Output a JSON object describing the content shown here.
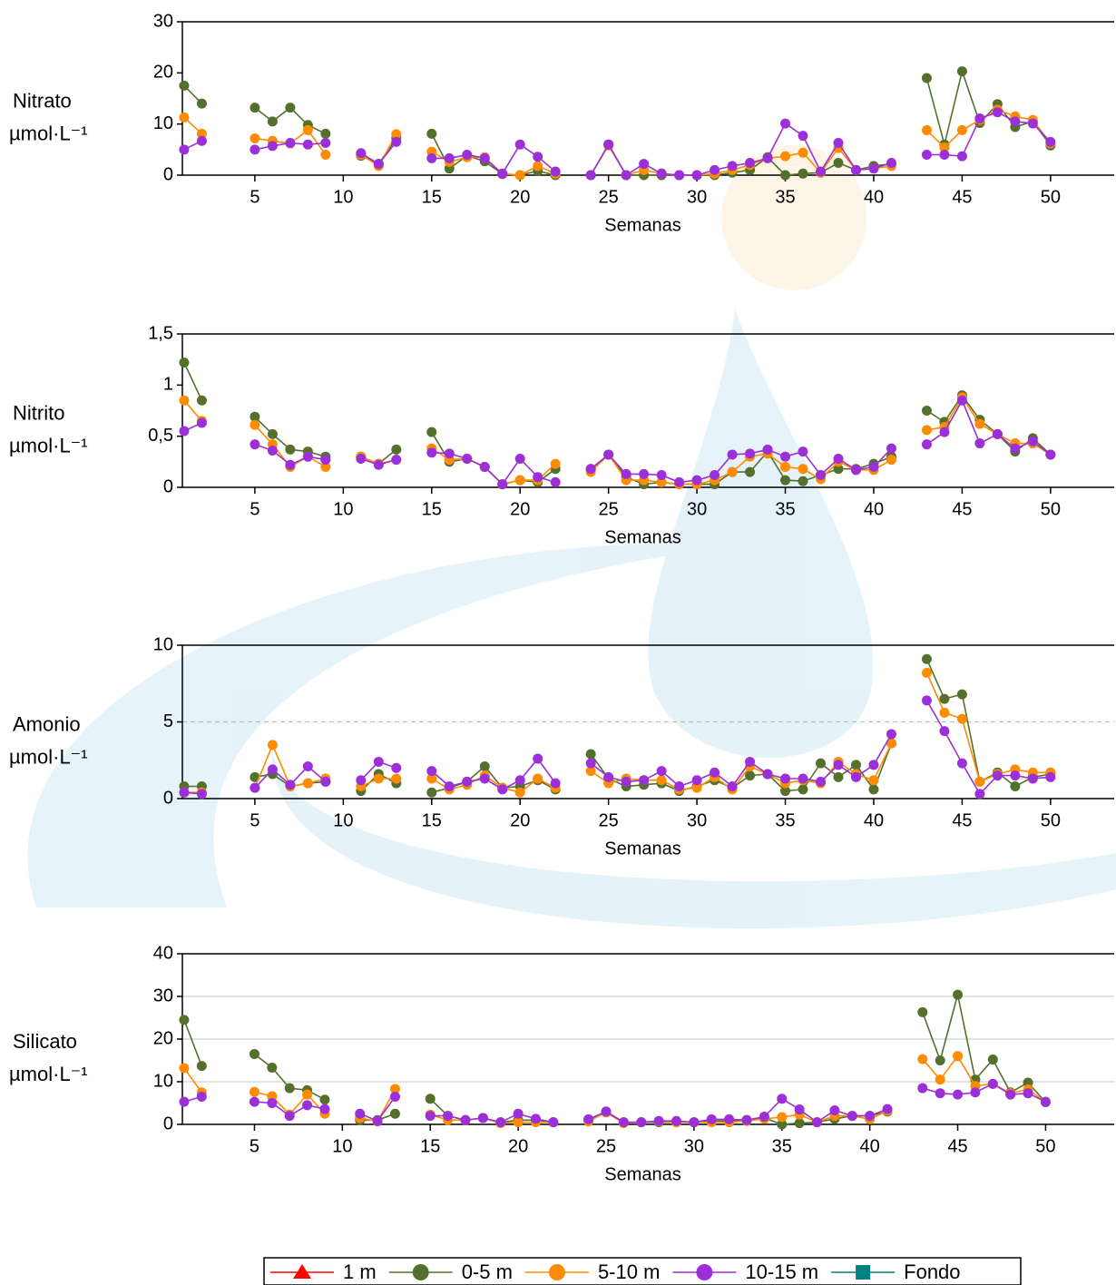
{
  "chart_data": [
    {
      "type": "line",
      "ylabel": "Nitrato",
      "yunit": "µmol·L⁻¹",
      "xlabel": "Semanas",
      "x": [
        1,
        2,
        3,
        4,
        5,
        6,
        7,
        8,
        9,
        10,
        11,
        12,
        13,
        14,
        15,
        16,
        17,
        18,
        19,
        20,
        21,
        22,
        23,
        24,
        25,
        26,
        27,
        28,
        29,
        30,
        31,
        32,
        33,
        34,
        35,
        36,
        37,
        38,
        39,
        40,
        41,
        42,
        43,
        44,
        45,
        46,
        47,
        48,
        49,
        50
      ],
      "xlim": [
        0.9,
        53.6
      ],
      "xticks": [
        5,
        10,
        15,
        20,
        25,
        30,
        35,
        40,
        45,
        50
      ],
      "ylim": [
        0,
        30
      ],
      "yticks": [
        0,
        10,
        20,
        30
      ],
      "grid": false,
      "series": [
        {
          "color": "#54702d",
          "values": [
            17.5,
            14,
            null,
            null,
            13.2,
            10.5,
            13.2,
            9.8,
            8.1,
            null,
            3.8,
            2.2,
            7.2,
            null,
            8.1,
            1.3,
            3.8,
            2.7,
            0.2,
            0,
            0.8,
            0,
            null,
            0,
            6,
            0,
            0,
            0,
            0,
            0,
            0,
            0.5,
            1,
            3.5,
            0,
            0.3,
            0.5,
            2.4,
            1,
            1.8,
            2.2,
            null,
            19,
            6,
            20.3,
            10.2,
            13.9,
            9.4,
            10.5,
            5.8
          ]
        },
        {
          "color": "#ff8c00",
          "values": [
            11.3,
            8.1,
            null,
            null,
            7.2,
            6.7,
            6.2,
            8.8,
            4,
            null,
            4,
            1.8,
            8,
            null,
            4.6,
            2.6,
            3.5,
            3.5,
            0.3,
            0,
            1.8,
            0.3,
            null,
            0,
            5.8,
            0,
            1,
            0.3,
            0,
            0,
            0.3,
            1,
            2,
            3.3,
            3.7,
            4.4,
            0.5,
            5.3,
            1,
            1.3,
            1.8,
            null,
            8.8,
            5.4,
            8.8,
            10.8,
            12.8,
            11.5,
            10.8,
            6.2
          ]
        },
        {
          "color": "#9b30d9",
          "values": [
            5,
            6.7,
            null,
            null,
            5,
            5.7,
            6.3,
            6,
            6.3,
            null,
            4.3,
            2.2,
            6.5,
            null,
            3.3,
            3.3,
            4,
            3.3,
            0.3,
            6,
            3.6,
            0.7,
            null,
            0,
            6,
            0,
            2.2,
            0.3,
            0,
            0,
            1,
            1.8,
            2.4,
            3.3,
            10.1,
            7.7,
            0.7,
            6.3,
            1,
            1.3,
            2.4,
            null,
            4,
            4,
            3.7,
            11.1,
            12.3,
            10.5,
            10.1,
            6.5
          ]
        }
      ]
    },
    {
      "type": "line",
      "ylabel": "Nitrito",
      "yunit": "µmol·L⁻¹",
      "xlabel": "Semanas",
      "x": [
        1,
        2,
        3,
        4,
        5,
        6,
        7,
        8,
        9,
        10,
        11,
        12,
        13,
        14,
        15,
        16,
        17,
        18,
        19,
        20,
        21,
        22,
        23,
        24,
        25,
        26,
        27,
        28,
        29,
        30,
        31,
        32,
        33,
        34,
        35,
        36,
        37,
        38,
        39,
        40,
        41,
        42,
        43,
        44,
        45,
        46,
        47,
        48,
        49,
        50
      ],
      "xlim": [
        0.9,
        53.6
      ],
      "xticks": [
        5,
        10,
        15,
        20,
        25,
        30,
        35,
        40,
        45,
        50
      ],
      "ylim": [
        0,
        1.5
      ],
      "yticks": [
        0,
        {
          "value": 0.5,
          "label": "0,5"
        },
        1,
        {
          "value": 1.5,
          "label": "1,5"
        }
      ],
      "grid": false,
      "series": [
        {
          "color": "#54702d",
          "values": [
            1.22,
            0.85,
            null,
            null,
            0.69,
            0.52,
            0.37,
            0.35,
            0.3,
            null,
            0.3,
            0.23,
            0.37,
            null,
            0.54,
            0.25,
            0.28,
            0.2,
            0.03,
            0.07,
            0.05,
            0.18,
            null,
            0.18,
            0.32,
            0.1,
            0.03,
            0.05,
            0.03,
            0.03,
            0.03,
            0.15,
            0.15,
            0.35,
            0.07,
            0.06,
            0.12,
            0.18,
            0.18,
            0.23,
            0.3,
            null,
            0.75,
            0.64,
            0.9,
            0.66,
            0.52,
            0.35,
            0.48,
            0.32
          ]
        },
        {
          "color": "#ff8c00",
          "values": [
            0.85,
            0.65,
            null,
            null,
            0.61,
            0.42,
            0.2,
            0.3,
            0.2,
            null,
            0.3,
            0.23,
            0.27,
            null,
            0.38,
            0.27,
            0.28,
            0.2,
            0.03,
            0.07,
            0.07,
            0.23,
            null,
            0.15,
            0.32,
            0.07,
            0.07,
            0.05,
            0.03,
            0.03,
            0.07,
            0.15,
            0.3,
            0.33,
            0.2,
            0.18,
            0.08,
            0.25,
            0.17,
            0.17,
            0.27,
            null,
            0.56,
            0.59,
            0.88,
            0.62,
            0.52,
            0.43,
            0.43,
            0.32
          ]
        },
        {
          "color": "#9b30d9",
          "values": [
            0.55,
            0.63,
            null,
            null,
            0.42,
            0.36,
            0.22,
            0.3,
            0.27,
            null,
            0.28,
            0.22,
            0.27,
            null,
            0.34,
            0.33,
            0.28,
            0.2,
            0.03,
            0.28,
            0.1,
            0.05,
            null,
            0.18,
            0.32,
            0.13,
            0.13,
            0.12,
            0.05,
            0.07,
            0.12,
            0.32,
            0.33,
            0.37,
            0.3,
            0.35,
            0.12,
            0.28,
            0.17,
            0.2,
            0.38,
            null,
            0.42,
            0.54,
            0.85,
            0.43,
            0.52,
            0.38,
            0.45,
            0.32
          ]
        }
      ]
    },
    {
      "type": "line",
      "ylabel": "Amonio",
      "yunit": "µmol·L⁻¹",
      "xlabel": "Semanas",
      "x": [
        1,
        2,
        3,
        4,
        5,
        6,
        7,
        8,
        9,
        10,
        11,
        12,
        13,
        14,
        15,
        16,
        17,
        18,
        19,
        20,
        21,
        22,
        23,
        24,
        25,
        26,
        27,
        28,
        29,
        30,
        31,
        32,
        33,
        34,
        35,
        36,
        37,
        38,
        39,
        40,
        41,
        42,
        43,
        44,
        45,
        46,
        47,
        48,
        49,
        50
      ],
      "xlim": [
        0.9,
        53.6
      ],
      "xticks": [
        5,
        10,
        15,
        20,
        25,
        30,
        35,
        40,
        45,
        50
      ],
      "ylim": [
        0,
        10
      ],
      "yticks": [
        0,
        5,
        10
      ],
      "grid": "dashed",
      "series": [
        {
          "color": "#54702d",
          "values": [
            0.8,
            0.8,
            null,
            null,
            1.4,
            1.6,
            0.8,
            1,
            1.1,
            null,
            0.5,
            1.6,
            1,
            null,
            0.4,
            0.7,
            1.1,
            2.1,
            0.7,
            0.8,
            1.2,
            0.6,
            null,
            2.9,
            1.3,
            0.8,
            0.9,
            1,
            0.5,
            0.8,
            1.2,
            0.7,
            1.5,
            1.6,
            0.5,
            0.6,
            2.3,
            1.4,
            2.2,
            0.6,
            3.6,
            null,
            9.1,
            6.5,
            6.8,
            1.1,
            1.7,
            0.8,
            1.4,
            1.6
          ]
        },
        {
          "color": "#ff8c00",
          "values": [
            0.4,
            0.4,
            null,
            null,
            0.7,
            3.5,
            0.8,
            1,
            1.3,
            null,
            0.8,
            1.3,
            1.3,
            null,
            1.3,
            0.6,
            0.9,
            1.5,
            0.7,
            0.4,
            1.3,
            0.7,
            null,
            1.8,
            1,
            1.3,
            1.2,
            1.2,
            0.6,
            0.7,
            1.4,
            0.6,
            2.1,
            1.6,
            1,
            1.2,
            1,
            2.4,
            1.6,
            1.2,
            3.6,
            null,
            8.2,
            5.6,
            5.2,
            1.1,
            1.6,
            1.9,
            1.7,
            1.7
          ]
        },
        {
          "color": "#9b30d9",
          "values": [
            0.4,
            0.3,
            null,
            null,
            0.7,
            1.9,
            0.9,
            2.1,
            1.1,
            null,
            1.2,
            2.4,
            2,
            null,
            1.8,
            0.8,
            1.1,
            1.3,
            0.6,
            1.2,
            2.6,
            1,
            null,
            2.3,
            1.4,
            1.1,
            1.2,
            1.8,
            0.8,
            1.2,
            1.7,
            0.8,
            2.4,
            1.6,
            1.3,
            1.3,
            1.1,
            2.2,
            1.4,
            2.2,
            4.2,
            null,
            6.4,
            4.4,
            2.3,
            0.3,
            1.5,
            1.5,
            1.3,
            1.4
          ]
        }
      ]
    },
    {
      "type": "line",
      "ylabel": "Silicato",
      "yunit": "µmol·L⁻¹",
      "xlabel": "Semanas",
      "x": [
        1,
        2,
        3,
        4,
        5,
        6,
        7,
        8,
        9,
        10,
        11,
        12,
        13,
        14,
        15,
        16,
        17,
        18,
        19,
        20,
        21,
        22,
        23,
        24,
        25,
        26,
        27,
        28,
        29,
        30,
        31,
        32,
        33,
        34,
        35,
        36,
        37,
        38,
        39,
        40,
        41,
        42,
        43,
        44,
        45,
        46,
        47,
        48,
        49,
        50
      ],
      "xlim": [
        0.9,
        53.9
      ],
      "xticks": [
        5,
        10,
        15,
        20,
        25,
        30,
        35,
        40,
        45,
        50
      ],
      "ylim": [
        0,
        40
      ],
      "yticks": [
        0,
        10,
        20,
        30,
        40
      ],
      "grid": "solid",
      "series": [
        {
          "color": "#54702d",
          "values": [
            24.5,
            13.7,
            null,
            null,
            16.5,
            13.3,
            8.5,
            8,
            5.8,
            null,
            1,
            1,
            2.5,
            null,
            6,
            2,
            1,
            1.5,
            0.5,
            1,
            1,
            0.5,
            null,
            1,
            3,
            0.5,
            0.5,
            0.5,
            0.5,
            0.5,
            0.8,
            0.8,
            1,
            1.5,
            0,
            0.3,
            0.5,
            1.3,
            2,
            2,
            3,
            null,
            26.3,
            15,
            30.4,
            10.5,
            15.2,
            7.5,
            9.8,
            5.2
          ]
        },
        {
          "color": "#ff8c00",
          "values": [
            13.2,
            7.5,
            null,
            null,
            7.6,
            6.6,
            2.3,
            7,
            2.5,
            null,
            1.5,
            0.7,
            8.3,
            null,
            2.3,
            1,
            1,
            1.5,
            0.3,
            0.5,
            0.5,
            0.5,
            null,
            0.7,
            2.8,
            0.3,
            0.5,
            0.7,
            0.5,
            0.5,
            0.5,
            0.5,
            0.8,
            1.3,
            1.7,
            2.3,
            0.5,
            2,
            2,
            1.2,
            3.2,
            null,
            15.3,
            10.5,
            16,
            9,
            9.5,
            7.3,
            8.2,
            5.3
          ]
        },
        {
          "color": "#9b30d9",
          "values": [
            5.3,
            6.5,
            null,
            null,
            5.3,
            5,
            2,
            4.5,
            3.6,
            null,
            2.5,
            0.8,
            6.5,
            null,
            2,
            2,
            1,
            1.5,
            0.5,
            2.5,
            1.3,
            0.5,
            null,
            1.2,
            3,
            0.5,
            0.5,
            0.8,
            0.8,
            0.5,
            1.2,
            1.2,
            1,
            1.8,
            6,
            3.5,
            0.5,
            3.3,
            2,
            2,
            3.6,
            null,
            8.5,
            7.3,
            7,
            7.5,
            9.5,
            7,
            7.3,
            5.3
          ]
        }
      ]
    }
  ],
  "legend": [
    {
      "name": "1 m",
      "color": "#ff0000",
      "marker": "triangle"
    },
    {
      "name": "0-5 m",
      "color": "#54702d",
      "marker": "circle"
    },
    {
      "name": "5-10 m",
      "color": "#ff8c00",
      "marker": "circle"
    },
    {
      "name": "10-15 m",
      "color": "#9b30d9",
      "marker": "circle"
    },
    {
      "name": "Fondo",
      "color": "#008080",
      "marker": "square"
    }
  ]
}
